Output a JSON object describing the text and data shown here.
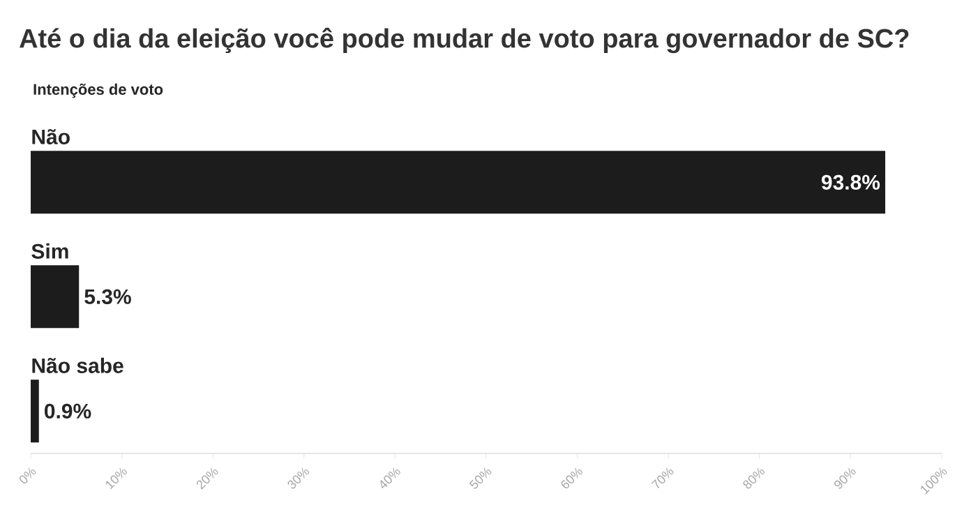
{
  "chart_data": {
    "type": "bar",
    "orientation": "horizontal",
    "title": "Até o dia da eleição você pode mudar de voto para governador de SC?",
    "subtitle": "Intenções de voto",
    "categories": [
      "Não",
      "Sim",
      "Não sabe"
    ],
    "values": [
      93.8,
      5.3,
      0.9
    ],
    "value_labels": [
      "93.8%",
      "5.3%",
      "0.9%"
    ],
    "color": "#1c1c1c",
    "xlim": [
      0,
      100
    ],
    "xticks": [
      {
        "value": 0,
        "label": "0%"
      },
      {
        "value": 10,
        "label": "10%"
      },
      {
        "value": 20,
        "label": "20%"
      },
      {
        "value": 30,
        "label": "30%"
      },
      {
        "value": 40,
        "label": "40%"
      },
      {
        "value": 50,
        "label": "50%"
      },
      {
        "value": 60,
        "label": "60%"
      },
      {
        "value": 70,
        "label": "70%"
      },
      {
        "value": 80,
        "label": "80%"
      },
      {
        "value": 90,
        "label": "90%"
      },
      {
        "value": 100,
        "label": "100%"
      }
    ],
    "grid": false
  }
}
